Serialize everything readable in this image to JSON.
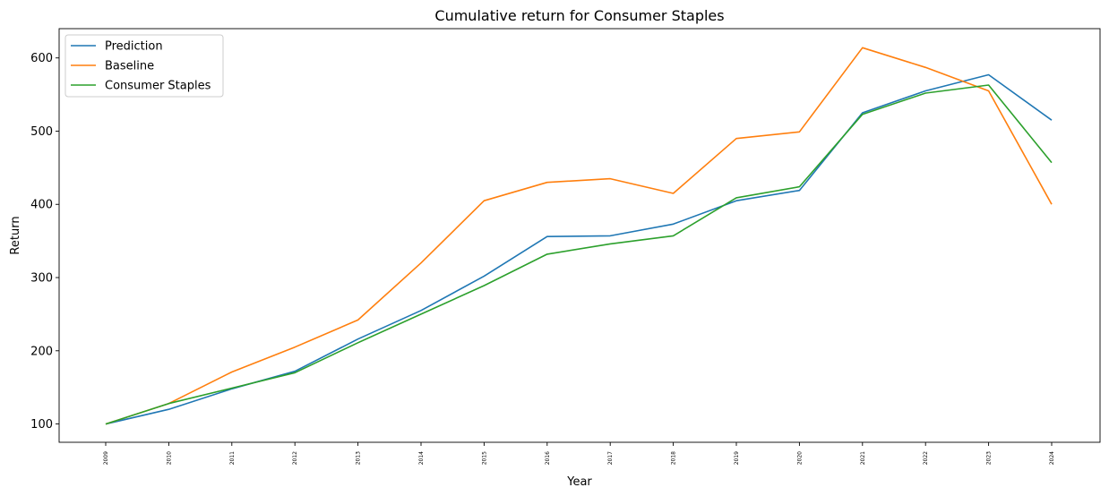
{
  "chart_data": {
    "type": "line",
    "title": "Cumulative return for Consumer Staples",
    "xlabel": "Year",
    "ylabel": "Return",
    "categories": [
      "2009",
      "2010",
      "2011",
      "2012",
      "2013",
      "2014",
      "2015",
      "2016",
      "2017",
      "2018",
      "2019",
      "2020",
      "2021",
      "2022",
      "2023",
      "2024"
    ],
    "yticks": [
      100,
      200,
      300,
      400,
      500,
      600
    ],
    "ylim": [
      75,
      640
    ],
    "grid": false,
    "legend_position": "top-left",
    "series": [
      {
        "name": "Prediction",
        "color": "#1f77b4",
        "values": [
          100,
          120,
          148,
          172,
          216,
          255,
          302,
          356,
          357,
          373,
          405,
          419,
          525,
          555,
          577,
          515
        ]
      },
      {
        "name": "Baseline",
        "color": "#ff7f0e",
        "values": [
          100,
          128,
          171,
          205,
          242,
          320,
          405,
          430,
          435,
          415,
          490,
          499,
          614,
          587,
          555,
          400
        ]
      },
      {
        "name": "Consumer Staples",
        "color": "#2ca02c",
        "values": [
          100,
          128,
          149,
          170,
          211,
          250,
          289,
          332,
          346,
          357,
          409,
          424,
          523,
          552,
          563,
          457
        ]
      }
    ]
  }
}
